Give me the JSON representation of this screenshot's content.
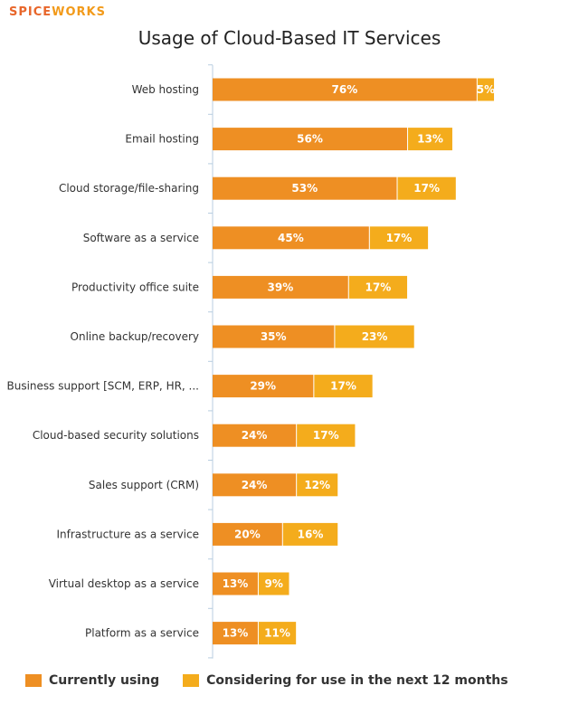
{
  "logo": {
    "part1": "SPICE",
    "part2": "WORKS"
  },
  "chart_data": {
    "type": "bar",
    "orientation": "horizontal",
    "stacked": true,
    "title": "Usage of Cloud-Based IT Services",
    "categories": [
      "Web hosting",
      "Email hosting",
      "Cloud storage/file-sharing",
      "Software as a service",
      "Productivity office suite",
      "Online backup/recovery",
      "Business support [SCM, ERP, HR, ...",
      "Cloud-based security solutions",
      "Sales support (CRM)",
      "Infrastructure as a service",
      "Virtual desktop as a service",
      "Platform as a service"
    ],
    "series": [
      {
        "name": "Currently using",
        "color": "#ee8f23",
        "values": [
          76,
          56,
          53,
          45,
          39,
          35,
          29,
          24,
          24,
          20,
          13,
          13
        ],
        "labels": [
          "76%",
          "56%",
          "53%",
          "45%",
          "39%",
          "35%",
          "29%",
          "24%",
          "24%",
          "20%",
          "13%",
          "13%"
        ]
      },
      {
        "name": "Considering for use in the next 12 months",
        "color": "#f4ac1c",
        "values": [
          5,
          13,
          17,
          17,
          17,
          23,
          17,
          17,
          12,
          16,
          9,
          11
        ],
        "labels": [
          "5%",
          "13%",
          "17%",
          "17%",
          "17%",
          "23%",
          "17%",
          "17%",
          "12%",
          "16%",
          "9%",
          "11%"
        ]
      }
    ],
    "xlim": [
      0,
      100
    ],
    "grid": false,
    "legend_position": "bottom-left"
  }
}
